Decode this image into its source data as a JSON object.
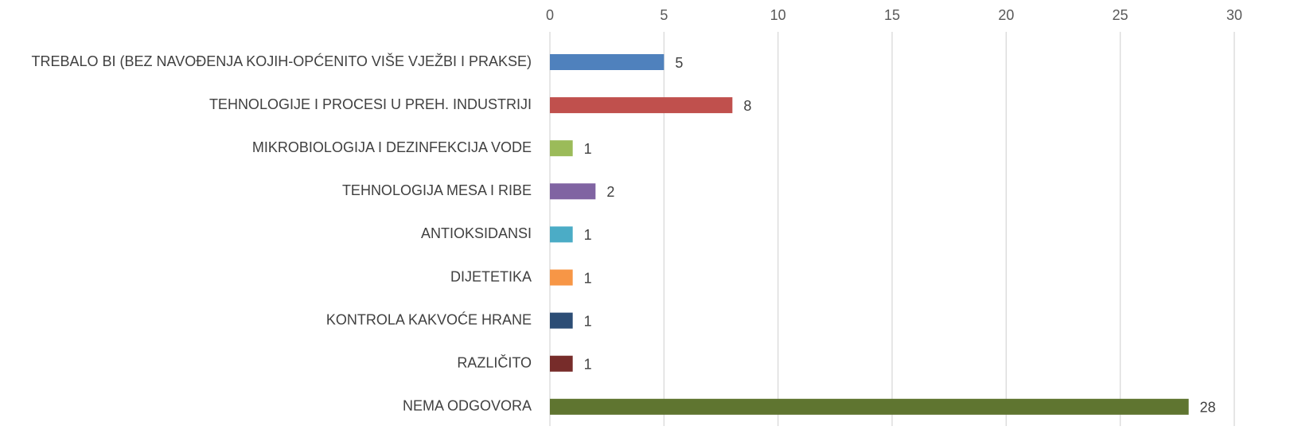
{
  "chart_data": {
    "type": "bar",
    "orientation": "horizontal",
    "categories": [
      "TREBALO BI (BEZ NAVOĐENJA KOJIH-OPĆENITO VIŠE VJEŽBI I PRAKSE)",
      "TEHNOLOGIJE I PROCESI U PREH. INDUSTRIJI",
      "MIKROBIOLOGIJA I DEZINFEKCIJA VODE",
      "TEHNOLOGIJA MESA I RIBE",
      "ANTIOKSIDANSI",
      "DIJETETIKA",
      "KONTROLA KAKVOĆE HRANE",
      "RAZLIČITO",
      "NEMA ODGOVORA"
    ],
    "values": [
      5,
      8,
      1,
      2,
      1,
      1,
      1,
      1,
      28
    ],
    "colors": [
      "#4f81bd",
      "#c0504d",
      "#9bbb59",
      "#8064a2",
      "#4bacc6",
      "#f79646",
      "#2c4d75",
      "#772c2a",
      "#5f7530"
    ],
    "xlim": [
      0,
      30
    ],
    "xticks": [
      0,
      5,
      10,
      15,
      20,
      25,
      30
    ],
    "grid": true
  }
}
